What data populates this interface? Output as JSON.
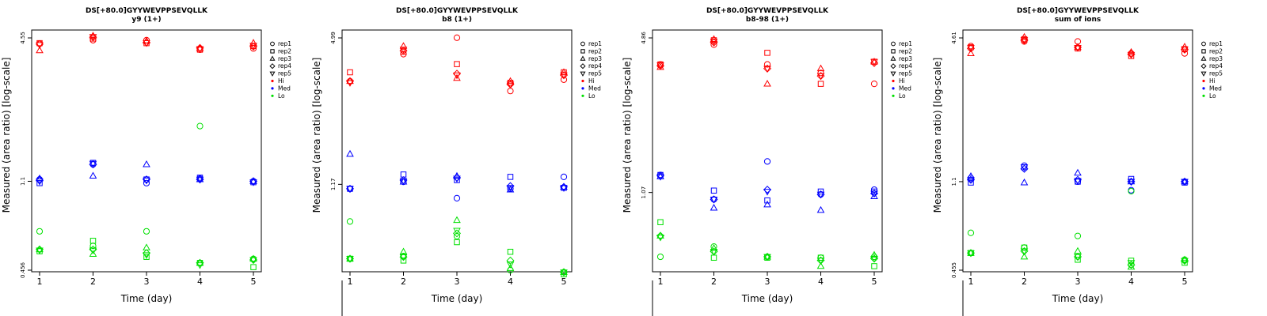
{
  "colors": {
    "Hi": "#ff0000",
    "Med": "#0000ff",
    "Lo": "#00e000"
  },
  "chart_data": [
    {
      "type": "scatter",
      "title": "DS[+80.0]GYYWEVPPSEVQLLK",
      "subtitle": "y9 (1+)",
      "xlabel": "Time (day)",
      "ylabel": "Measured (area ratio) [log-scale]",
      "y_scale": "log",
      "ylim": [
        0.456,
        4.55
      ],
      "xlim": [
        1,
        5
      ],
      "x_ticks": [
        "1",
        "2",
        "3",
        "4",
        "5"
      ],
      "y_ticks": [
        {
          "value": 0.456,
          "label": "0.456"
        },
        {
          "value": 1.1,
          "label": "1.1"
        },
        {
          "value": 4.55,
          "label": "4.55"
        }
      ],
      "legend": {
        "position": "right",
        "entries": [
          "rep1",
          "rep2",
          "rep3",
          "rep4",
          "rep5",
          "Hi",
          "Med",
          "Lo"
        ]
      },
      "series": [
        {
          "name": "Hi",
          "reps": {
            "rep1": [
              4.3,
              4.45,
              4.45,
              4.05,
              4.1
            ],
            "rep2": [
              4.32,
              4.52,
              4.32,
              4.05,
              4.2
            ],
            "rep3": [
              4.02,
              4.65,
              4.42,
              4.1,
              4.33
            ],
            "rep4": [
              4.28,
              4.58,
              4.35,
              4.12,
              4.18
            ],
            "rep5": [
              4.25,
              4.6,
              4.33,
              4.08,
              4.22
            ]
          }
        },
        {
          "name": "Med",
          "reps": {
            "rep1": [
              1.12,
              1.3,
              1.08,
              1.13,
              1.1
            ],
            "rep2": [
              1.08,
              1.32,
              1.12,
              1.14,
              1.09
            ],
            "rep3": [
              1.13,
              1.16,
              1.3,
              1.12,
              1.1
            ],
            "rep4": [
              1.11,
              1.3,
              1.12,
              1.12,
              1.1
            ],
            "rep5": [
              1.1,
              1.31,
              1.11,
              1.12,
              1.09
            ]
          }
        },
        {
          "name": "Lo",
          "reps": {
            "rep1": [
              0.67,
              0.58,
              0.67,
              0.49,
              0.51
            ],
            "rep2": [
              0.55,
              0.61,
              0.52,
              0.49,
              0.47
            ],
            "rep3": [
              0.56,
              0.535,
              0.57,
              0.49,
              0.51
            ],
            "rep4": [
              0.56,
              0.56,
              0.54,
              0.49,
              0.505
            ],
            "rep5": [
              0.555,
              0.555,
              0.53,
              0.48,
              0.505
            ]
          }
        },
        {
          "name": "Lo-outlier",
          "legend": false,
          "color_of": "Lo",
          "reps": {
            "rep1": [
              null,
              null,
              null,
              1.9,
              null
            ]
          }
        }
      ]
    },
    {
      "type": "scatter",
      "title": "DS[+80.0]GYYWEVPPSEVQLLK",
      "subtitle": "b8 (1+)",
      "xlabel": "Time (day)",
      "ylabel": "Measured (area ratio) [log-scale]",
      "y_scale": "log",
      "ylim": [
        0.5,
        4.99
      ],
      "xlim": [
        1,
        5
      ],
      "x_ticks": [
        "1",
        "2",
        "3",
        "4",
        "5"
      ],
      "y_ticks": [
        {
          "value": 1.17,
          "label": "1.17"
        },
        {
          "value": 4.99,
          "label": "4.99"
        }
      ],
      "legend": {
        "position": "right",
        "entries": [
          "rep1",
          "rep2",
          "rep3",
          "rep4",
          "rep5",
          "Hi",
          "Med",
          "Lo"
        ]
      },
      "series": [
        {
          "name": "Hi",
          "reps": {
            "rep1": [
              3.25,
              4.25,
              5.0,
              2.95,
              3.3
            ],
            "rep2": [
              3.55,
              4.35,
              3.85,
              3.2,
              3.55
            ],
            "rep3": [
              3.25,
              4.6,
              3.35,
              3.25,
              3.55
            ],
            "rep4": [
              3.25,
              4.4,
              3.5,
              3.15,
              3.45
            ],
            "rep5": [
              3.2,
              4.45,
              3.45,
              3.15,
              3.45
            ]
          }
        },
        {
          "name": "Med",
          "reps": {
            "rep1": [
              1.12,
              1.2,
              1.02,
              1.12,
              1.26
            ],
            "rep2": [
              1.12,
              1.29,
              1.22,
              1.26,
              1.13
            ],
            "rep3": [
              1.58,
              1.2,
              1.27,
              1.11,
              1.14
            ],
            "rep4": [
              1.12,
              1.22,
              1.25,
              1.15,
              1.14
            ],
            "rep5": [
              1.12,
              1.21,
              1.24,
              1.13,
              1.13
            ]
          }
        },
        {
          "name": "Lo",
          "reps": {
            "rep1": [
              0.81,
              0.575,
              0.7,
              0.5,
              0.49
            ],
            "rep2": [
              0.56,
              0.55,
              0.66,
              0.6,
              0.48
            ],
            "rep3": [
              0.56,
              0.6,
              0.82,
              0.51,
              0.49
            ],
            "rep4": [
              0.56,
              0.57,
              0.72,
              0.55,
              0.49
            ],
            "rep5": [
              0.56,
              0.57,
              0.74,
              0.53,
              0.49
            ]
          }
        }
      ]
    },
    {
      "type": "scatter",
      "title": "DS[+80.0]GYYWEVPPSEVQLLK",
      "subtitle": "b8-98 (1+)",
      "xlabel": "Time (day)",
      "ylabel": "Measured (area ratio) [log-scale]",
      "y_scale": "log",
      "ylim": [
        0.5,
        4.86
      ],
      "xlim": [
        1,
        5
      ],
      "x_ticks": [
        "1",
        "2",
        "3",
        "4",
        "5"
      ],
      "y_ticks": [
        {
          "value": 1.07,
          "label": "1.07"
        },
        {
          "value": 4.86,
          "label": "4.86"
        }
      ],
      "legend": {
        "position": "right",
        "entries": [
          "rep1",
          "rep2",
          "rep3",
          "rep4",
          "rep5",
          "Hi",
          "Med",
          "Lo"
        ]
      },
      "series": [
        {
          "name": "Hi",
          "reps": {
            "rep1": [
              3.75,
              4.55,
              3.75,
              3.45,
              3.1
            ],
            "rep2": [
              3.75,
              4.75,
              4.2,
              3.1,
              3.85
            ],
            "rep3": [
              3.65,
              4.8,
              3.1,
              3.6,
              3.85
            ],
            "rep4": [
              3.7,
              4.65,
              3.6,
              3.35,
              3.8
            ],
            "rep5": [
              3.72,
              4.7,
              3.6,
              3.35,
              3.85
            ]
          }
        },
        {
          "name": "Med",
          "reps": {
            "rep1": [
              1.27,
              1.0,
              1.45,
              1.05,
              1.1
            ],
            "rep2": [
              1.27,
              1.09,
              0.99,
              1.08,
              1.08
            ],
            "rep3": [
              1.25,
              0.92,
              0.95,
              0.9,
              1.03
            ],
            "rep4": [
              1.26,
              1.0,
              1.1,
              1.05,
              1.06
            ],
            "rep5": [
              1.25,
              1.0,
              1.08,
              1.05,
              1.06
            ]
          }
        },
        {
          "name": "Lo",
          "reps": {
            "rep1": [
              0.57,
              0.63,
              0.57,
              0.565,
              0.57
            ],
            "rep2": [
              0.8,
              0.565,
              0.565,
              0.565,
              0.52
            ],
            "rep3": [
              0.7,
              0.62,
              0.57,
              0.52,
              0.58
            ],
            "rep4": [
              0.7,
              0.6,
              0.57,
              0.55,
              0.56
            ],
            "rep5": [
              0.69,
              0.6,
              0.57,
              0.55,
              0.56
            ]
          }
        }
      ]
    },
    {
      "type": "scatter",
      "title": "DS[+80.0]GYYWEVPPSEVQLLK",
      "subtitle": "sum of ions",
      "xlabel": "Time (day)",
      "ylabel": "Measured (area ratio) [log-scale]",
      "y_scale": "log",
      "ylim": [
        0.455,
        4.61
      ],
      "xlim": [
        1,
        5
      ],
      "x_ticks": [
        "1",
        "2",
        "3",
        "4",
        "5"
      ],
      "y_ticks": [
        {
          "value": 0.455,
          "label": "0.455"
        },
        {
          "value": 1.1,
          "label": "1.1"
        },
        {
          "value": 4.61,
          "label": "4.61"
        }
      ],
      "legend": {
        "position": "right",
        "entries": [
          "rep1",
          "rep2",
          "rep3",
          "rep4",
          "rep5",
          "Hi",
          "Med",
          "Lo"
        ]
      },
      "series": [
        {
          "name": "Hi",
          "reps": {
            "rep1": [
              4.25,
              4.45,
              4.45,
              3.95,
              3.95
            ],
            "rep2": [
              4.2,
              4.55,
              4.15,
              3.85,
              4.12
            ],
            "rep3": [
              3.95,
              4.65,
              4.2,
              4.0,
              4.22
            ],
            "rep4": [
              4.15,
              4.5,
              4.2,
              3.92,
              4.1
            ],
            "rep5": [
              4.18,
              4.52,
              4.18,
              3.9,
              4.12
            ]
          }
        },
        {
          "name": "Med",
          "reps": {
            "rep1": [
              1.14,
              1.29,
              1.1,
              1.01,
              1.1
            ],
            "rep2": [
              1.09,
              1.27,
              1.1,
              1.13,
              1.09
            ],
            "rep3": [
              1.16,
              1.09,
              1.2,
              1.1,
              1.1
            ],
            "rep4": [
              1.12,
              1.25,
              1.12,
              1.1,
              1.1
            ],
            "rep5": [
              1.12,
              1.27,
              1.11,
              1.1,
              1.1
            ]
          }
        },
        {
          "name": "Lo",
          "reps": {
            "rep1": [
              0.66,
              0.57,
              0.64,
              0.48,
              0.505
            ],
            "rep2": [
              0.54,
              0.57,
              0.505,
              0.5,
              0.49
            ],
            "rep3": [
              0.54,
              0.52,
              0.55,
              0.47,
              0.505
            ],
            "rep4": [
              0.54,
              0.55,
              0.52,
              0.48,
              0.5
            ],
            "rep5": [
              0.54,
              0.55,
              0.52,
              0.49,
              0.5
            ]
          }
        },
        {
          "name": "Lo-outlier",
          "legend": false,
          "color_of": "Lo",
          "reps": {
            "rep1": [
              null,
              null,
              null,
              1.0,
              null
            ]
          }
        }
      ]
    }
  ]
}
